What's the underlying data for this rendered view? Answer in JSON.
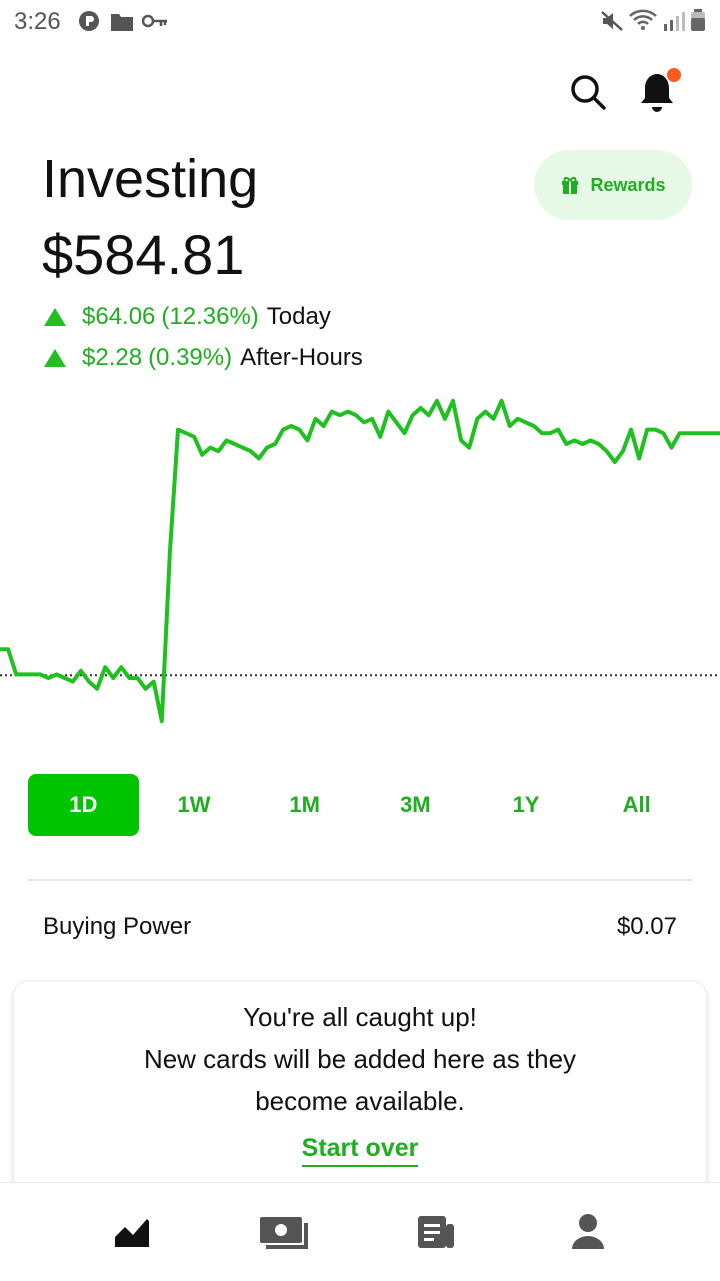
{
  "status_bar": {
    "time": "3:26",
    "left_icons": [
      "p-circle-icon",
      "folder-icon",
      "key-icon"
    ],
    "right_icons": [
      "mute-icon",
      "wifi-icon",
      "signal-icon",
      "battery-icon"
    ]
  },
  "header": {
    "title": "Investing",
    "balance": "$584.81",
    "rewards_label": "Rewards",
    "notification_dot_color": "#ff5a1f"
  },
  "changes": [
    {
      "amount": "$64.06",
      "percent": "(12.36%)",
      "label": "Today"
    },
    {
      "amount": "$2.28",
      "percent": "(0.39%)",
      "label": "After-Hours"
    }
  ],
  "chart_data": {
    "type": "line",
    "color": "#1fc01f",
    "baseline": 520.75,
    "baseline_style": "dotted",
    "y": [
      528,
      528,
      521,
      521,
      521,
      521,
      520,
      521,
      520,
      519,
      522,
      519,
      517,
      523,
      520,
      523,
      520,
      520,
      517,
      519,
      508,
      555,
      589,
      588,
      587,
      582,
      584,
      583,
      586,
      585,
      584,
      583,
      581,
      584,
      585,
      589,
      590,
      589,
      586,
      592,
      590,
      594,
      593,
      594,
      593,
      591,
      592,
      587,
      594,
      591,
      588,
      593,
      595,
      593,
      597,
      592,
      597,
      586,
      584,
      592,
      594,
      592,
      597,
      590,
      592,
      591,
      590,
      588,
      588,
      589,
      585,
      586,
      585,
      586,
      585,
      583,
      580,
      583,
      589,
      581,
      589,
      589,
      588,
      584,
      588,
      588,
      588,
      588,
      588,
      588
    ],
    "ylim": [
      500,
      600
    ],
    "accent": "#00c400"
  },
  "ranges": {
    "items": [
      "1D",
      "1W",
      "1M",
      "3M",
      "1Y",
      "All"
    ],
    "selected": "1D"
  },
  "buying_power": {
    "label": "Buying Power",
    "value": "$0.07"
  },
  "card": {
    "lines": [
      "You're all caught up!",
      "New cards will be added here as they",
      "become available."
    ],
    "action": "Start over"
  },
  "bottom_nav": {
    "items": [
      "chart-icon",
      "cash-icon",
      "news-icon",
      "account-icon"
    ]
  }
}
